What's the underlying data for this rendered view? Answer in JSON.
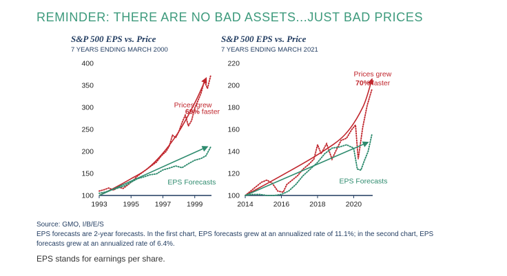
{
  "headline": "REMINDER: THERE ARE NO BAD ASSETS...JUST BAD PRICES",
  "colors": {
    "headline": "#3d9a7c",
    "title": "#1f3a5f",
    "price": "#c0262d",
    "eps": "#2e8b6e",
    "axis": "#1f3a5f"
  },
  "chart_data": [
    {
      "type": "line",
      "title": "S&P 500 EPS vs. Price",
      "subtitle": "7 YEARS ENDING MARCH 2000",
      "xlabel": "",
      "ylabel": "",
      "xlim": [
        1993.0,
        2000.05
      ],
      "ylim": [
        100,
        400
      ],
      "x_ticks": [
        "1993",
        "1995",
        "1997",
        "1999"
      ],
      "y_ticks": [
        "100",
        "150",
        "200",
        "250",
        "300",
        "350",
        "400"
      ],
      "grid": false,
      "annotations": {
        "price_line1": "Prices grew",
        "price_pct": "69%",
        "price_line2": " faster",
        "eps_label": "EPS Forecasts"
      },
      "series": [
        {
          "name": "Price",
          "style": "dotted",
          "x": [
            1993.0,
            1993.3,
            1993.6,
            1993.9,
            1994.2,
            1994.5,
            1994.8,
            1995.1,
            1995.4,
            1995.7,
            1996.0,
            1996.3,
            1996.6,
            1996.9,
            1997.2,
            1997.4,
            1997.6,
            1997.8,
            1998.0,
            1998.2,
            1998.4,
            1998.6,
            1998.8,
            1999.0,
            1999.2,
            1999.4,
            1999.6,
            1999.8,
            2000.0
          ],
          "y": [
            110,
            113,
            117,
            112,
            119,
            116,
            124,
            133,
            144,
            152,
            160,
            168,
            176,
            190,
            200,
            212,
            237,
            231,
            245,
            265,
            282,
            258,
            270,
            298,
            315,
            333,
            360,
            343,
            372
          ]
        },
        {
          "name": "Price trend",
          "style": "arrow",
          "x": [
            1993.0,
            1994.0,
            1995.0,
            1996.0,
            1997.0,
            1998.0,
            1999.0,
            1999.7
          ],
          "y": [
            100,
            118,
            138,
            160,
            196,
            245,
            310,
            365
          ]
        },
        {
          "name": "EPS Forecasts",
          "style": "dotted",
          "x": [
            1993.0,
            1993.4,
            1993.8,
            1994.2,
            1994.6,
            1995.0,
            1995.4,
            1995.8,
            1996.2,
            1996.6,
            1997.0,
            1997.4,
            1997.8,
            1998.2,
            1998.6,
            1999.0,
            1999.4,
            1999.7,
            2000.0
          ],
          "y": [
            105,
            108,
            113,
            117,
            122,
            130,
            138,
            142,
            147,
            149,
            158,
            162,
            167,
            163,
            172,
            180,
            184,
            190,
            210
          ]
        },
        {
          "name": "EPS trend",
          "style": "arrow",
          "x": [
            1993.0,
            1999.75
          ],
          "y": [
            100,
            210
          ]
        }
      ]
    },
    {
      "type": "line",
      "title": "S&P 500 EPS vs. Price",
      "subtitle": "7 YEARS ENDING MARCH 2021",
      "xlabel": "",
      "ylabel": "",
      "xlim": [
        2014.0,
        2021.05
      ],
      "ylim": [
        100,
        220
      ],
      "x_ticks": [
        "2014",
        "2016",
        "2018",
        "2020"
      ],
      "y_ticks": [
        "100",
        "120",
        "140",
        "160",
        "180",
        "200",
        "220"
      ],
      "grid": false,
      "annotations": {
        "price_line1": "Prices grew",
        "price_pct": "70%",
        "price_line2": " faster",
        "eps_label": "EPS Forecasts"
      },
      "series": [
        {
          "name": "Price",
          "style": "dotted",
          "x": [
            2014.0,
            2014.3,
            2014.6,
            2014.9,
            2015.2,
            2015.5,
            2015.8,
            2016.1,
            2016.3,
            2016.6,
            2016.9,
            2017.2,
            2017.5,
            2017.8,
            2018.0,
            2018.2,
            2018.5,
            2018.8,
            2019.0,
            2019.3,
            2019.6,
            2019.9,
            2020.1,
            2020.25,
            2020.5,
            2020.75,
            2021.0
          ],
          "y": [
            100,
            104,
            108,
            112,
            114,
            111,
            104,
            103,
            110,
            114,
            118,
            124,
            128,
            133,
            146,
            138,
            147,
            133,
            140,
            150,
            152,
            160,
            164,
            133,
            162,
            182,
            196
          ]
        },
        {
          "name": "Price trend",
          "style": "arrow",
          "x": [
            2014.0,
            2016.0,
            2018.0,
            2019.5,
            2020.5,
            2021.0
          ],
          "y": [
            100,
            118,
            137,
            155,
            180,
            205
          ]
        },
        {
          "name": "EPS Forecasts",
          "style": "dotted",
          "x": [
            2014.0,
            2014.4,
            2014.8,
            2015.2,
            2015.6,
            2016.0,
            2016.4,
            2016.8,
            2017.2,
            2017.6,
            2018.0,
            2018.4,
            2018.8,
            2019.2,
            2019.6,
            2020.0,
            2020.2,
            2020.4,
            2020.6,
            2020.8,
            2021.0
          ],
          "y": [
            100,
            101,
            101,
            100,
            100,
            101,
            104,
            110,
            118,
            124,
            130,
            138,
            143,
            144,
            146,
            143,
            124,
            123,
            132,
            140,
            155
          ]
        },
        {
          "name": "EPS trend",
          "style": "arrow",
          "x": [
            2014.0,
            2020.75
          ],
          "y": [
            100,
            148
          ]
        }
      ]
    }
  ],
  "footnotes": {
    "source": "Source: GMO, I/B/E/S",
    "line2": "EPS forecasts are 2-year forecasts. In the first chart, EPS forecasts grew at an annualized rate of 11.1%;  in the second chart, EPS",
    "line3": "forecasts grew at an annualized rate of 6.4%."
  },
  "extra_note": "EPS stands for earnings per share."
}
